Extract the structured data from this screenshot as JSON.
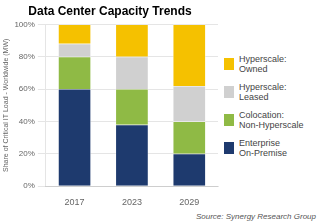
{
  "chart_data": {
    "type": "bar",
    "stacked": true,
    "title": "Data Center Capacity Trends",
    "y_label": "Share of Critical IT Load - Worldwide (MW)",
    "annotation": "Source: Synergy Research Group",
    "categories": [
      "2017",
      "2023",
      "2029"
    ],
    "series": [
      {
        "name": "Enterprise\nOn-Premise",
        "color": "#1e3a6e",
        "values": [
          60,
          38,
          20
        ]
      },
      {
        "name": "Colocation:\nNon-Hyperscale",
        "color": "#8fba45",
        "values": [
          20,
          22,
          20
        ]
      },
      {
        "name": "Hyperscale:\nLeased",
        "color": "#d0d0d0",
        "values": [
          8,
          20,
          22
        ]
      },
      {
        "name": "Hyperscale:\nOwned",
        "color": "#f5c100",
        "values": [
          12,
          20,
          38
        ]
      }
    ],
    "ylim": [
      0,
      100
    ],
    "yticks": [
      {
        "value": 0,
        "label": "0%"
      },
      {
        "value": 20,
        "label": "20%"
      },
      {
        "value": 40,
        "label": "40%"
      },
      {
        "value": 60,
        "label": "60%"
      },
      {
        "value": 80,
        "label": "80%"
      },
      {
        "value": 100,
        "label": "100%"
      }
    ],
    "grid": true,
    "legend": "right"
  }
}
